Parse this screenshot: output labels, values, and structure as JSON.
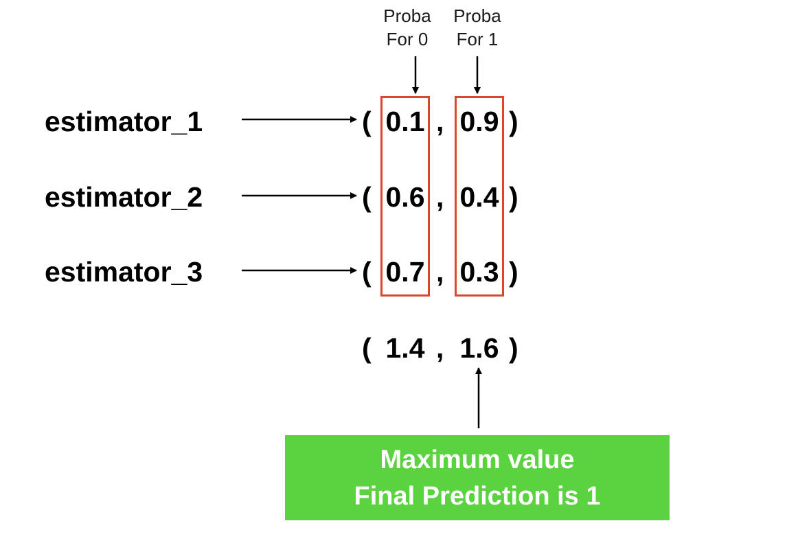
{
  "column_headers": [
    {
      "line1": "Proba",
      "line2": "For 0"
    },
    {
      "line1": "Proba",
      "line2": "For 1"
    }
  ],
  "rows": [
    {
      "label": "estimator_1",
      "value_0": "0.1",
      "value_1": "0.9"
    },
    {
      "label": "estimator_2",
      "value_0": "0.6",
      "value_1": "0.4"
    },
    {
      "label": "estimator_3",
      "value_0": "0.7",
      "value_1": "0.3"
    }
  ],
  "totals": {
    "value_0": "1.4",
    "value_1": "1.6"
  },
  "result_box": {
    "line1": "Maximum value",
    "line2": "Final Prediction is 1"
  },
  "colors": {
    "highlight_border": "#d9472f",
    "result_background": "#5bd23f",
    "result_text": "#ffffff"
  }
}
